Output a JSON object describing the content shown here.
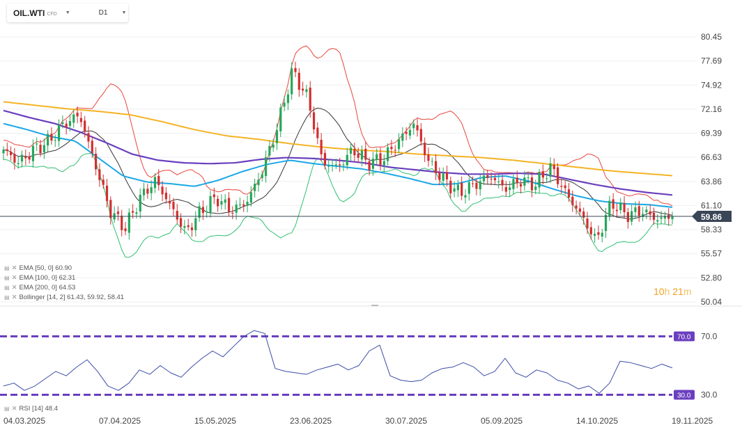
{
  "toolbar": {
    "symbol": "OIL.WTI",
    "symbol_tag": "CFD",
    "timeframe": "D1"
  },
  "colors": {
    "up": "#26a65b",
    "down": "#d32f2f",
    "ema50": "#1aa7e6",
    "ema100": "#6a3fbf",
    "ema200": "#f5b324",
    "bb_upper": "#e8453c",
    "bb_middle": "#333333",
    "bb_lower": "#2fbf71",
    "rsi": "#3a4ba8",
    "rsi_levels": "#6a3fbf",
    "price_tag": "#3a4556"
  },
  "price_axis": {
    "ticks": [
      "80.45",
      "77.69",
      "74.92",
      "72.16",
      "69.39",
      "66.63",
      "63.86",
      "61.10",
      "58.33",
      "55.57",
      "52.80",
      "50.04"
    ],
    "range": [
      50.04,
      80.45
    ]
  },
  "current_price": {
    "value": 59.86,
    "label": "59.86"
  },
  "rsi_axis": {
    "ticks": [
      "70.0",
      "30.0"
    ],
    "levels": [
      70,
      30
    ]
  },
  "date_axis": {
    "labels": [
      "04.03.2025",
      "07.04.2025",
      "15.05.2025",
      "23.06.2025",
      "30.07.2025",
      "05.09.2025",
      "14.10.2025",
      "19.11.2025"
    ]
  },
  "legend": {
    "ema50": "EMA [50, 0]  60.90",
    "ema100": "EMA [100, 0]  62.31",
    "ema200": "EMA [200, 0]  64.53",
    "bollinger": "Bollinger  [14, 2]  61.43, 59.92, 58.41",
    "rsi": "RSI [14]  48.4"
  },
  "countdown": {
    "hours": "10",
    "h_unit": "h",
    "minutes": "21",
    "m_unit": "m"
  },
  "chart_data": {
    "type": "candlestick",
    "title": "OIL.WTI D1",
    "ylim": [
      50.04,
      80.45
    ],
    "candles_sampled": {
      "dates": [
        "04.03.2025",
        "07.04.2025",
        "15.05.2025",
        "23.06.2025",
        "30.07.2025",
        "05.09.2025",
        "14.10.2025",
        "19.11.2025"
      ],
      "close": [
        67.5,
        60.5,
        62.0,
        65.0,
        68.5,
        62.5,
        58.5,
        59.86
      ]
    },
    "price_anchors": [
      67.5,
      66.0,
      67.5,
      68.5,
      70.5,
      71.5,
      66.0,
      60.5,
      58.5,
      62.0,
      64.0,
      61.0,
      58.0,
      60.5,
      62.0,
      60.5,
      61.5,
      65.0,
      70.0,
      76.5,
      73.5,
      66.0,
      65.5,
      67.5,
      66.0,
      66.5,
      68.5,
      70.5,
      66.0,
      64.0,
      62.5,
      63.5,
      64.5,
      63.0,
      64.0,
      63.5,
      65.5,
      62.5,
      60.0,
      57.0,
      61.5,
      60.0,
      60.5,
      59.5,
      59.86
    ],
    "ema50": {
      "last": 60.9,
      "approx": [
        70.5,
        69.8,
        69.0,
        68.5,
        66.5,
        64.5,
        63.8,
        63.6,
        63.3,
        64.0,
        65.0,
        65.8,
        66.3,
        65.9,
        65.6,
        65.3,
        64.8,
        64.2,
        63.5,
        63.6,
        64.3,
        64.5,
        63.9,
        63.0,
        62.2,
        61.6,
        61.3,
        61.2,
        60.9
      ]
    },
    "ema100": {
      "last": 62.31,
      "approx": [
        72.0,
        71.2,
        70.5,
        69.5,
        68.3,
        67.0,
        66.3,
        66.0,
        65.9,
        66.0,
        66.4,
        66.6,
        66.5,
        66.3,
        66.0,
        65.5,
        65.2,
        64.9,
        64.7,
        64.7,
        64.8,
        64.7,
        64.1,
        63.5,
        63.0,
        62.6,
        62.31
      ]
    },
    "ema200": {
      "last": 64.53,
      "approx": [
        73.0,
        72.6,
        72.2,
        71.9,
        71.5,
        70.7,
        69.8,
        69.1,
        68.7,
        68.2,
        67.8,
        67.5,
        67.3,
        67.0,
        66.8,
        66.6,
        66.3,
        65.9,
        65.5,
        65.1,
        64.8,
        64.53
      ]
    },
    "bollinger": {
      "period": 14,
      "mult": 2,
      "upper": 61.43,
      "middle": 59.92,
      "lower": 58.41
    },
    "rsi": {
      "period": 14,
      "last": 48.4,
      "levels": [
        70,
        30
      ],
      "values": [
        36,
        38,
        33,
        36,
        41,
        46,
        43,
        49,
        54,
        46,
        36,
        33,
        38,
        47,
        44,
        50,
        45,
        42,
        49,
        55,
        60,
        56,
        63,
        70,
        74,
        72,
        48,
        46,
        45,
        44,
        47,
        49,
        51,
        47,
        50,
        60,
        64,
        43,
        40,
        39,
        40,
        45,
        48,
        49,
        52,
        49,
        43,
        46,
        55,
        45,
        42,
        47,
        45,
        40,
        38,
        34,
        36,
        31,
        38,
        53,
        52,
        50,
        48,
        51,
        48.4
      ]
    }
  }
}
